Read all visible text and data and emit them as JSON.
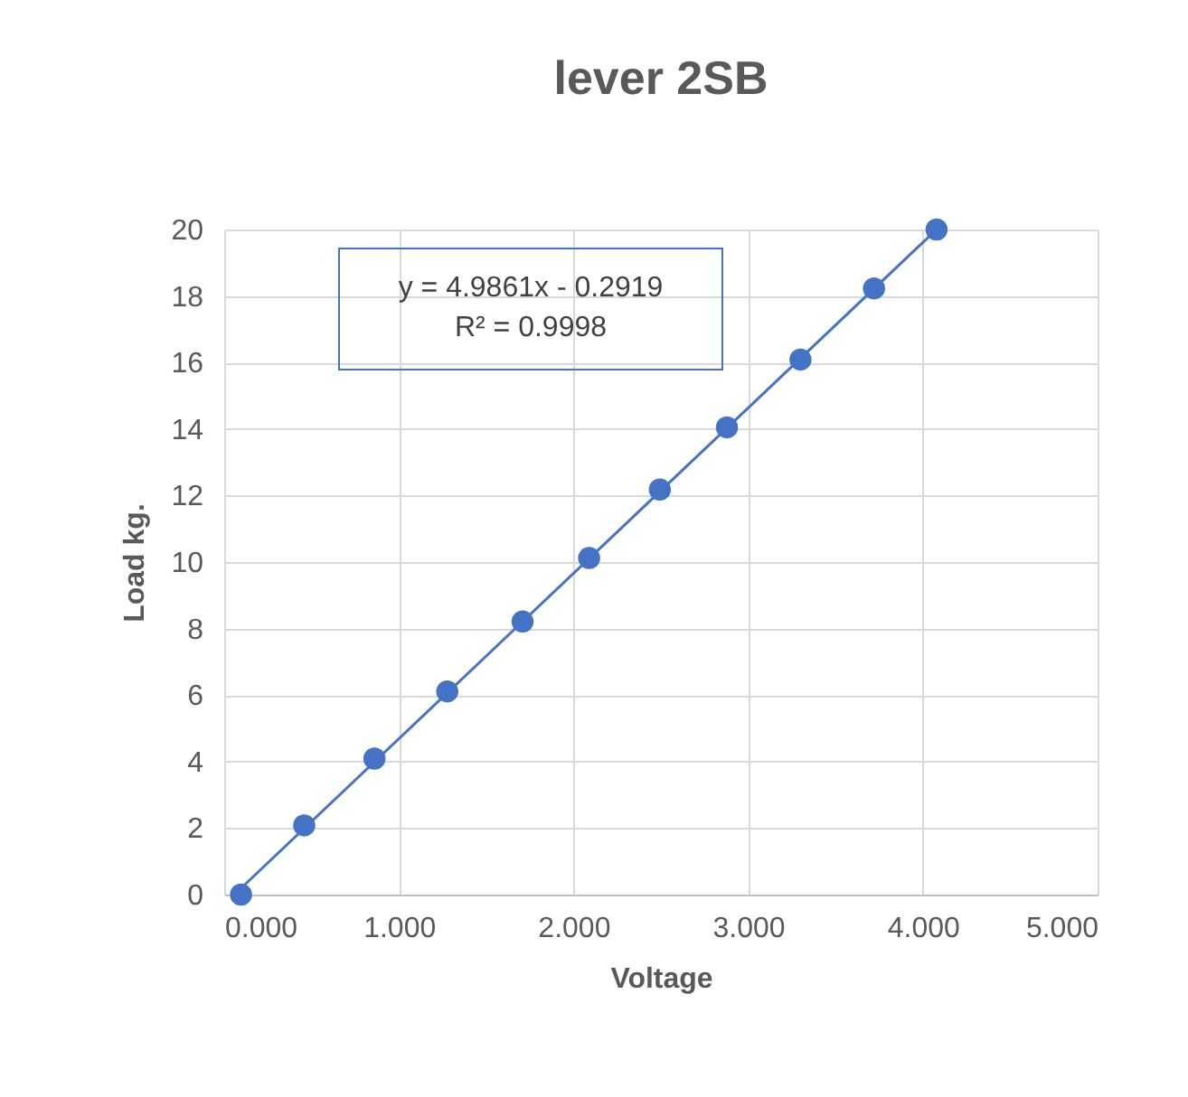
{
  "chart_data": {
    "type": "scatter",
    "title": "lever 2SB",
    "xlabel": "Voltage",
    "ylabel": "Load kg.",
    "annotations": [
      "y = 4.9861x - 0.2919",
      "R² = 0.9998"
    ],
    "x": [
      0.096,
      0.458,
      0.86,
      1.277,
      1.708,
      2.089,
      2.494,
      2.878,
      3.299,
      3.72,
      4.078
    ],
    "series": [
      {
        "color": "#4472c4",
        "marker": "circle",
        "values": [
          0,
          2.08,
          4.09,
          6.11,
          8.21,
          10.12,
          12.18,
          14.05,
          16.09,
          18.23,
          20
        ]
      },
      {
        "type": "line",
        "color": "#4472c4",
        "x": [
          0.096,
          4.078
        ],
        "values": [
          0.19,
          20
        ]
      }
    ],
    "xlim": [
      0,
      5
    ],
    "xticks": [
      {
        "value": 0,
        "label": "0.000"
      },
      {
        "value": 1,
        "label": "1.000"
      },
      {
        "value": 2,
        "label": "2.000"
      },
      {
        "value": 3,
        "label": "3.000"
      },
      {
        "value": 4,
        "label": "4.000"
      },
      {
        "value": 5,
        "label": "5.000"
      }
    ],
    "ylim": [
      0,
      20
    ],
    "yticks": [
      0,
      2,
      4,
      6,
      8,
      10,
      12,
      14,
      16,
      18,
      20
    ],
    "grid": true
  }
}
